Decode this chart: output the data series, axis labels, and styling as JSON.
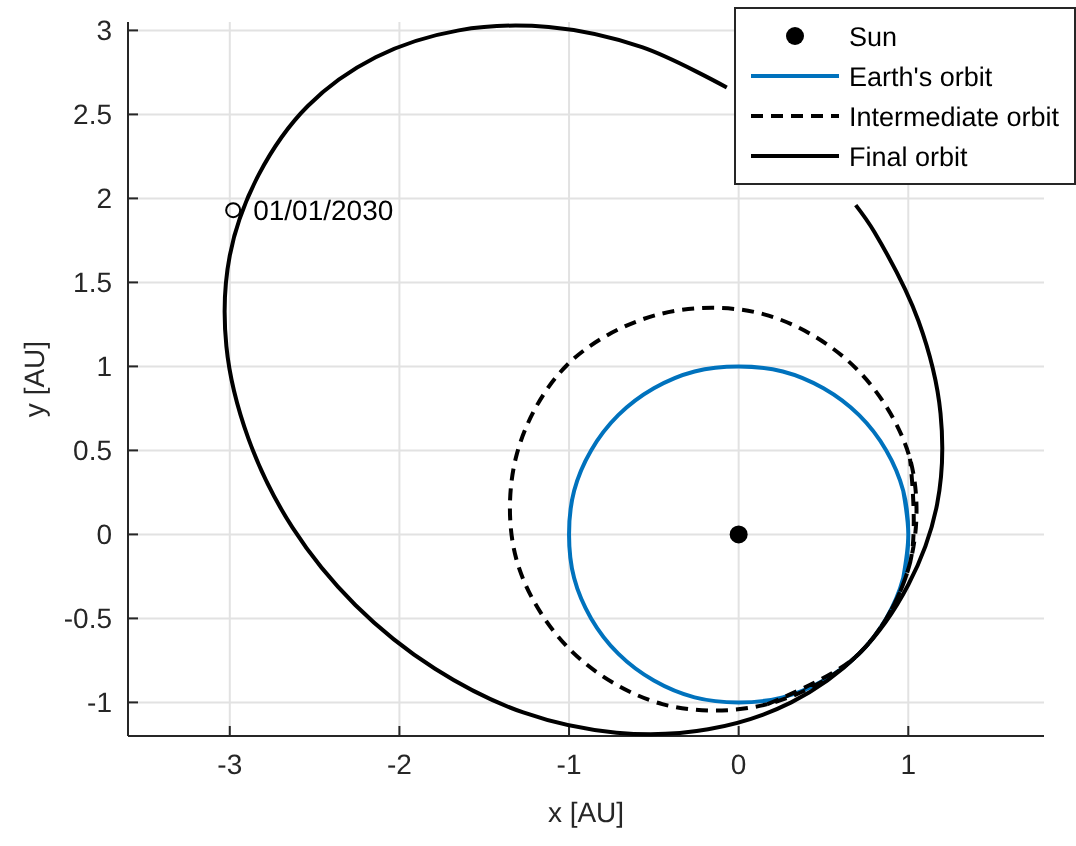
{
  "chart_data": {
    "type": "line",
    "xlabel": "x [AU]",
    "ylabel": "y [AU]",
    "xlim": [
      -3.6,
      1.8
    ],
    "ylim": [
      -1.2,
      3.05
    ],
    "xticks": [
      -3,
      -2,
      -1,
      0,
      1
    ],
    "yticks": [
      -1,
      -0.5,
      0,
      0.5,
      1,
      1.5,
      2,
      2.5,
      3
    ],
    "grid": true,
    "legend": "top right",
    "annotations": [
      {
        "text": "01/01/2030",
        "x": -2.98,
        "y": 1.93
      }
    ],
    "series": [
      {
        "name": "Sun",
        "type": "scatter",
        "color": "#000000",
        "marker": "circle",
        "x": [
          0
        ],
        "values": [
          0
        ]
      },
      {
        "name": "Earth's orbit",
        "color": "#0072bd",
        "line_style": "solid",
        "marker": "none",
        "x": [
          0.97,
          1,
          0.97,
          0.87,
          0.71,
          0.5,
          0.26,
          0,
          -0.26,
          -0.5,
          -0.71,
          -0.87,
          -0.97,
          -1,
          -0.97,
          -0.87,
          -0.71,
          -0.5,
          -0.26,
          0,
          0.26,
          0.5,
          0.71,
          0.87,
          0.97,
          1,
          0.97
        ],
        "values": [
          -0.26,
          0,
          0.26,
          0.5,
          0.71,
          0.87,
          0.97,
          1,
          0.97,
          0.87,
          0.71,
          0.5,
          0.26,
          0,
          -0.26,
          -0.5,
          -0.71,
          -0.87,
          -0.97,
          -1,
          -0.97,
          -0.87,
          -0.71,
          -0.5,
          -0.26,
          0,
          0.26
        ]
      },
      {
        "name": "Intermediate orbit",
        "color": "#000000",
        "line_style": "dashed",
        "marker": "none",
        "x": [
          0.17,
          0.71,
          1.01,
          1.01,
          0.69,
          0.15,
          -0.47,
          -1.01,
          -1.31,
          -1.31,
          -0.99,
          -0.45,
          0.17,
          0.71,
          1.01,
          1.01
        ],
        "values": [
          -1.01,
          -0.71,
          -0.17,
          0.45,
          0.99,
          1.31,
          1.31,
          1.01,
          0.47,
          -0.15,
          -0.69,
          -1.01,
          -1.01,
          -0.71,
          -0.17,
          0.45
        ]
      },
      {
        "name": "Final orbit",
        "color": "#000000",
        "line_style": "solid",
        "marker": "none",
        "x": [
          -0.07,
          -0.57,
          -1.12,
          -1.65,
          -2.14,
          -2.54,
          -2.83,
          -3.0,
          -3.02,
          -2.89,
          -2.63,
          -2.26,
          -1.79,
          -1.27,
          -0.72,
          -0.18,
          0.31,
          0.71,
          1.0,
          1.17,
          1.19,
          1.06,
          0.8,
          0.69
        ],
        "values": [
          2.66,
          2.9,
          3.02,
          3.0,
          2.84,
          2.55,
          2.14,
          1.66,
          1.12,
          0.57,
          0.04,
          -0.42,
          -0.8,
          -1.06,
          -1.18,
          -1.16,
          -1.0,
          -0.71,
          -0.3,
          0.18,
          0.72,
          1.27,
          1.8,
          1.96
        ]
      }
    ]
  }
}
